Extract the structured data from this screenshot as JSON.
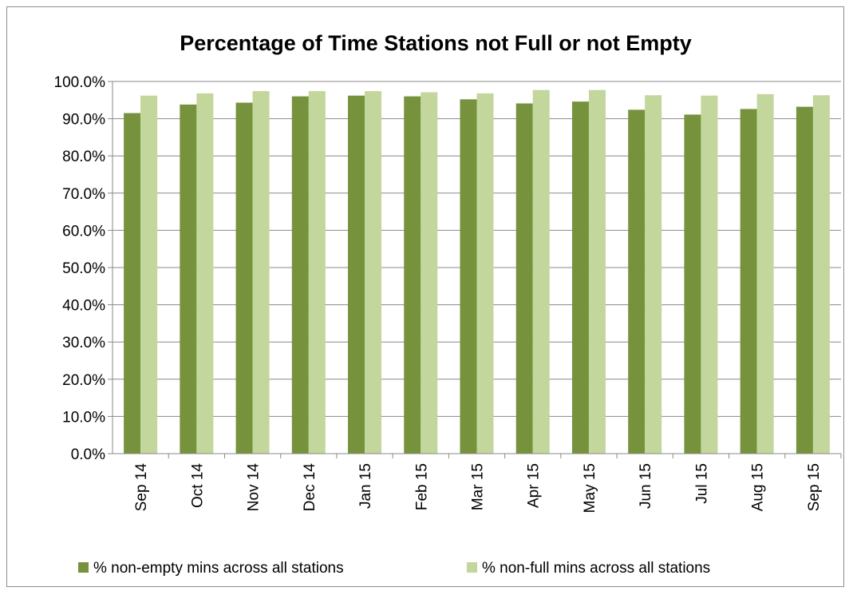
{
  "chart_data": {
    "type": "bar",
    "title": "Percentage of Time Stations not Full or not Empty",
    "xlabel": "",
    "ylabel": "",
    "categories": [
      "Sep 14",
      "Oct 14",
      "Nov 14",
      "Dec 14",
      "Jan 15",
      "Feb 15",
      "Mar 15",
      "Apr 15",
      "May 15",
      "Jun 15",
      "Jul 15",
      "Aug 15",
      "Sep 15"
    ],
    "series": [
      {
        "name": "% non-empty mins across all stations",
        "color": "#76923c",
        "values": [
          91.5,
          93.8,
          94.3,
          96.0,
          96.2,
          96.0,
          95.2,
          94.1,
          94.6,
          92.4,
          91.1,
          92.6,
          93.2
        ]
      },
      {
        "name": "% non-full mins across all stations",
        "color": "#c3d69b",
        "values": [
          96.2,
          96.8,
          97.4,
          97.4,
          97.4,
          97.1,
          96.8,
          97.7,
          97.7,
          96.3,
          96.2,
          96.6,
          96.3
        ]
      }
    ],
    "ylim": [
      0,
      100
    ],
    "yticks": [
      "0.0%",
      "10.0%",
      "20.0%",
      "30.0%",
      "40.0%",
      "50.0%",
      "60.0%",
      "70.0%",
      "80.0%",
      "90.0%",
      "100.0%"
    ],
    "grid": true,
    "legend_position": "bottom"
  }
}
